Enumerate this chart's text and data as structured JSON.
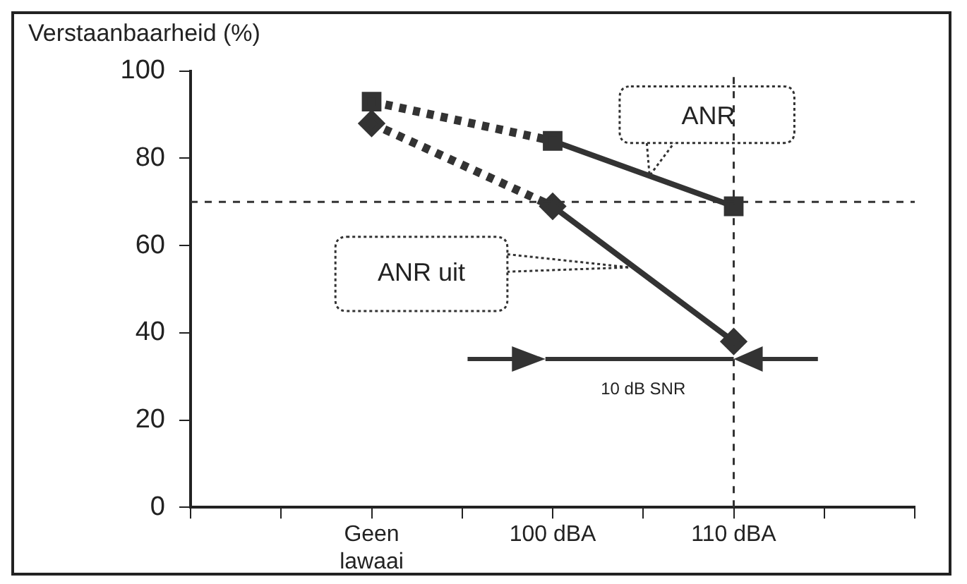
{
  "chart_data": {
    "type": "line",
    "title": "Verstaanbaarheid (%)",
    "categories": [
      null,
      null,
      "Geen lawaai",
      null,
      "100 dBA",
      null,
      "110 dBA",
      null,
      null
    ],
    "series": [
      {
        "color": "#333333",
        "marker": "square",
        "line_style": [
          "dotted",
          "solid"
        ],
        "values": [
          null,
          null,
          93,
          null,
          84,
          null,
          69,
          null,
          null
        ]
      },
      {
        "color": "#333333",
        "marker": "diamond",
        "line_style": [
          "dotted",
          "solid"
        ],
        "values": [
          null,
          null,
          88,
          null,
          69,
          null,
          38,
          null,
          null
        ]
      }
    ],
    "ylim": [
      0,
      100
    ],
    "yticks": [
      0,
      20,
      40,
      60,
      80,
      100
    ],
    "ref_lines": [
      {
        "axis": "y",
        "value": 70,
        "color": "#333333",
        "line_style": "dotted"
      },
      {
        "axis": "x",
        "value": "110 dBA",
        "color": "#333333",
        "line_style": "dotted"
      }
    ],
    "annotations": [
      "ANR",
      "ANR uit",
      "10 dB SNR"
    ],
    "grid": false,
    "legend": false
  }
}
